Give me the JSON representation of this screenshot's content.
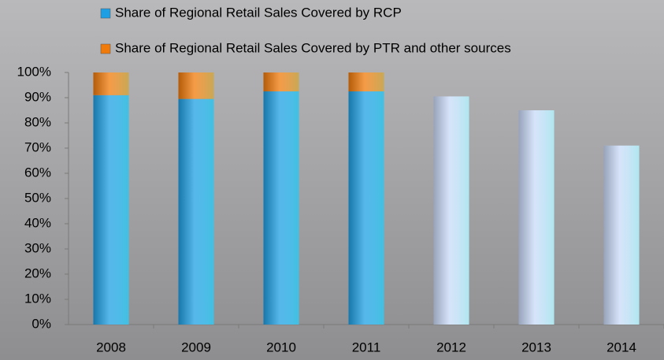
{
  "chart_data": {
    "type": "stacked_bar",
    "categories": [
      "2008",
      "2009",
      "2010",
      "2011",
      "2012",
      "2013",
      "2014"
    ],
    "series": [
      {
        "name": "Share of Regional Retail Sales Covered by RCP",
        "color": "#1e9fe4",
        "point_colors": [
          "#1e9fe4",
          "#1e9fe4",
          "#1e9fe4",
          "#1e9fe4",
          "#c9daf8",
          "#c9daf8",
          "#c9daf8"
        ],
        "values": [
          91,
          89.5,
          92.5,
          92.5,
          90.5,
          85,
          71
        ]
      },
      {
        "name": "Share of Regional Retail Sales Covered by PTR and other sources",
        "color": "#f07a0a",
        "values": [
          9,
          10.5,
          7.5,
          7.5,
          null,
          null,
          null
        ]
      }
    ],
    "ylim": [
      0,
      100
    ],
    "yticks": [
      {
        "value": 0,
        "label": "0%"
      },
      {
        "value": 10,
        "label": "10%"
      },
      {
        "value": 20,
        "label": "20%"
      },
      {
        "value": 30,
        "label": "30%"
      },
      {
        "value": 40,
        "label": "40%"
      },
      {
        "value": 50,
        "label": "50%"
      },
      {
        "value": 60,
        "label": "60%"
      },
      {
        "value": 70,
        "label": "70%"
      },
      {
        "value": 80,
        "label": "80%"
      },
      {
        "value": 90,
        "label": "90%"
      },
      {
        "value": 100,
        "label": "100%"
      }
    ],
    "legend": "top"
  }
}
